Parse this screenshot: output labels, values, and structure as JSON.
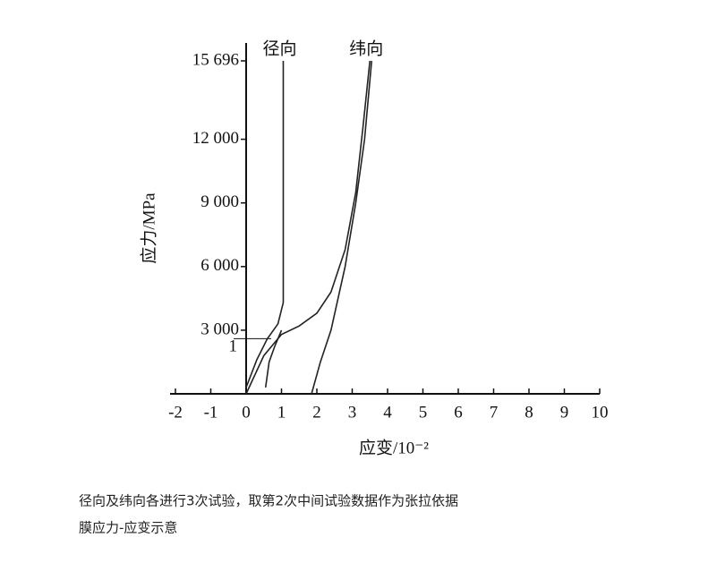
{
  "chart_data": {
    "type": "line",
    "ylabel": "应力/MPa",
    "xlabel": "应变/10⁻²",
    "xlim": [
      -2,
      10
    ],
    "xticks": [
      -2,
      -1,
      0,
      1,
      2,
      3,
      4,
      5,
      6,
      7,
      8,
      9,
      10
    ],
    "ylim": [
      0,
      15696
    ],
    "yticks": [
      {
        "value": 3000,
        "label": "3 000"
      },
      {
        "value": 6000,
        "label": "6 000"
      },
      {
        "value": 9000,
        "label": "9 000"
      },
      {
        "value": 12000,
        "label": "12 000"
      },
      {
        "value": 15696,
        "label": "15 696"
      }
    ],
    "point_marker": {
      "label": "1",
      "y": 2600
    },
    "series": [
      {
        "name": "径向",
        "color": "#222222",
        "x": [
          0,
          0.3,
          0.6,
          0.9,
          1.05,
          1.05,
          null,
          0.55,
          0.65,
          0.8,
          1.0
        ],
        "values": [
          300,
          1600,
          2600,
          3300,
          4300,
          15696,
          null,
          300,
          1500,
          2200,
          3000
        ]
      },
      {
        "name": "纬向",
        "color": "#222222",
        "x": [
          0,
          0.5,
          1,
          1.5,
          2,
          2.4,
          2.8,
          3.1,
          3.3,
          3.5,
          null,
          1.85,
          2.1,
          2.4,
          2.8,
          3.1,
          3.35,
          3.55
        ],
        "values": [
          0,
          1800,
          2800,
          3200,
          3800,
          4800,
          6800,
          9500,
          12500,
          15696,
          null,
          0,
          1500,
          3000,
          6000,
          9000,
          12000,
          15696
        ]
      }
    ]
  },
  "caption": [
    "径向及纬向各进行3次试验，取第2次中间试验数据作为张拉依据",
    "膜应力-应变示意"
  ]
}
